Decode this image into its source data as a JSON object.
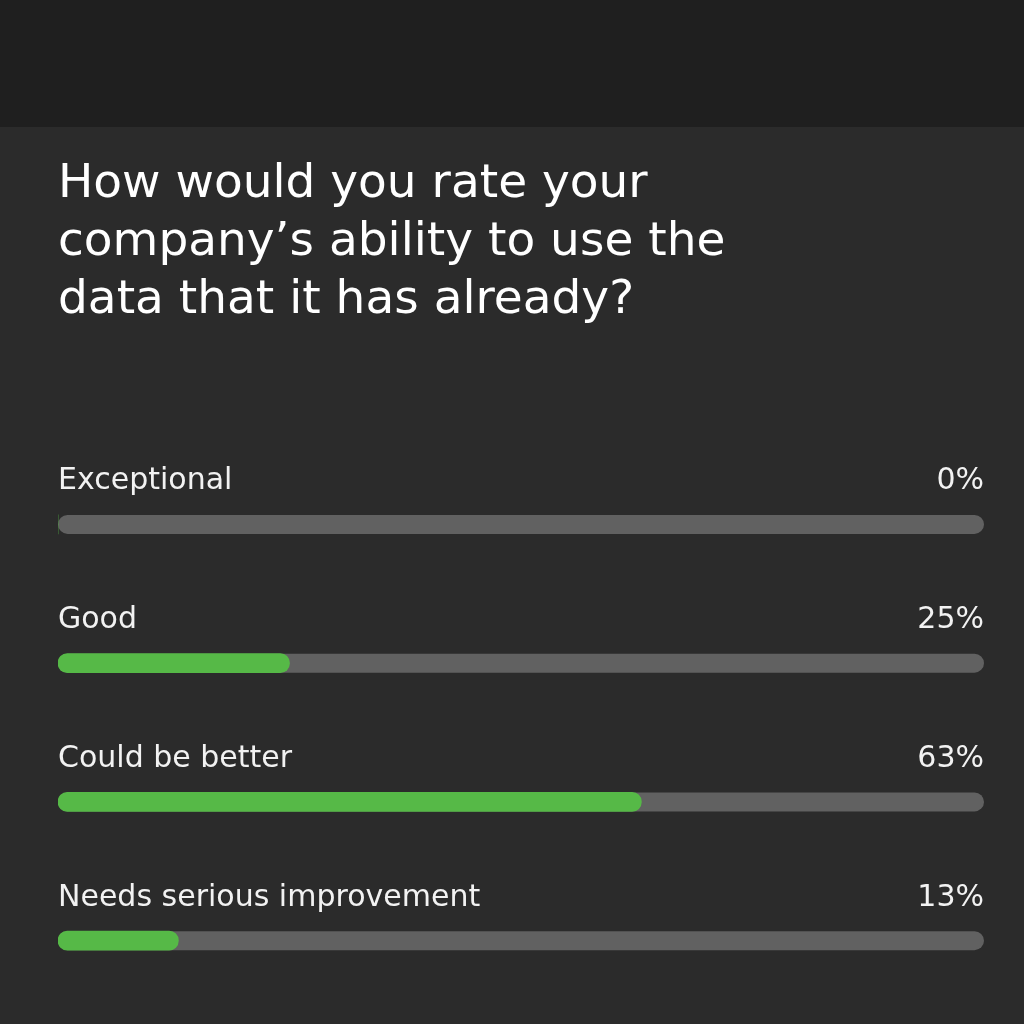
{
  "chart_data": {
    "type": "bar",
    "orientation": "horizontal",
    "title": "How would you rate your company’s ability to use the data that it has already?",
    "categories": [
      "Exceptional",
      "Good",
      "Could be better",
      "Needs serious improvement"
    ],
    "values": [
      0,
      25,
      63,
      13
    ],
    "value_labels": [
      "0%",
      "25%",
      "63%",
      "13%"
    ],
    "color": "#56b947",
    "xlim": [
      0,
      100
    ],
    "tick_labels": false
  }
}
